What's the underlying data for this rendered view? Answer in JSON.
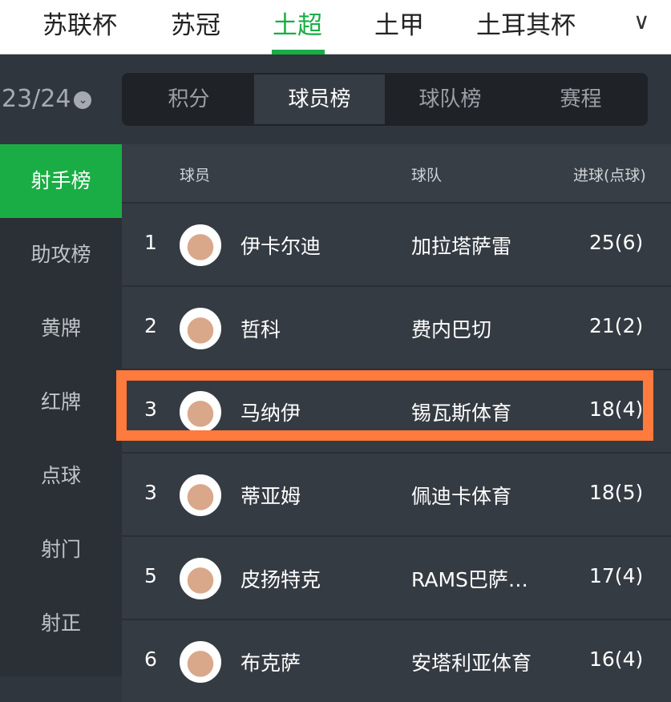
{
  "league_tabs": [
    "苏联杯",
    "苏冠",
    "土超",
    "土甲",
    "土耳其杯"
  ],
  "active_league": "土超",
  "more_icon": "chevron-down-icon",
  "season": "23/24",
  "segments": [
    "积分",
    "球员榜",
    "球队榜",
    "赛程"
  ],
  "active_segment": "球员榜",
  "sidebar": [
    "射手榜",
    "助攻榜",
    "黄牌",
    "红牌",
    "点球",
    "射门",
    "射正"
  ],
  "active_sidebar": "射手榜",
  "columns": {
    "player": "球员",
    "team": "球队",
    "goals": "进球(点球)"
  },
  "rows": [
    {
      "rank": "1",
      "name": "伊卡尔迪",
      "team": "加拉塔萨雷",
      "goals": "25(6)"
    },
    {
      "rank": "2",
      "name": "哲科",
      "team": "费内巴切",
      "goals": "21(2)"
    },
    {
      "rank": "3",
      "name": "马纳伊",
      "team": "锡瓦斯体育",
      "goals": "18(4)"
    },
    {
      "rank": "3",
      "name": "蒂亚姆",
      "team": "佩迪卡体育",
      "goals": "18(5)"
    },
    {
      "rank": "5",
      "name": "皮扬特克",
      "team": "RAMS巴萨…",
      "goals": "17(4)"
    },
    {
      "rank": "6",
      "name": "布克萨",
      "team": "安塔利亚体育",
      "goals": "16(4)"
    }
  ],
  "highlight_color": "#ff7a3d",
  "accent": "#1aad45"
}
